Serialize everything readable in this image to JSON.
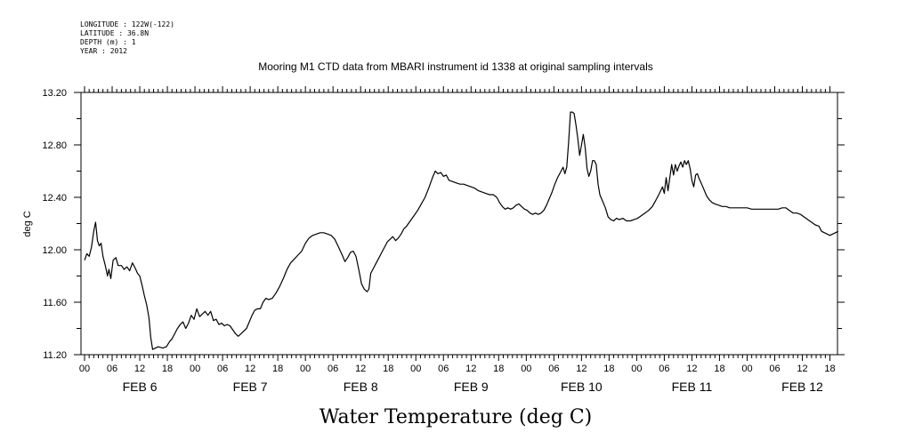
{
  "header": {
    "longitude": "LONGITUDE : 122W(-122)",
    "latitude": "LATITUDE : 36.8N",
    "depth": "DEPTH (m) : 1",
    "year": "YEAR : 2012"
  },
  "chart_data": {
    "type": "line",
    "title": "Mooring M1 CTD data from MBARI instrument id 1338 at original sampling intervals",
    "ylabel": "deg C",
    "xlabel": "Water Temperature (deg C)",
    "ylim": [
      11.2,
      13.2
    ],
    "yticks": [
      "11.20",
      "11.60",
      "12.00",
      "12.40",
      "12.80",
      "13.20"
    ],
    "xlim_hours": [
      0,
      162
    ],
    "x_hour_ticks": [
      "00",
      "06",
      "12",
      "18",
      "00",
      "06",
      "12",
      "18",
      "00",
      "06",
      "12",
      "18",
      "00",
      "06",
      "12",
      "18",
      "00",
      "06",
      "12",
      "18",
      "00",
      "06",
      "12",
      "18",
      "00",
      "06",
      "12",
      "18"
    ],
    "day_labels": [
      "FEB  6",
      "FEB  7",
      "FEB  8",
      "FEB  9",
      "FEB 10",
      "FEB 11",
      "FEB 12"
    ],
    "grid": false,
    "series": [
      {
        "points": [
          [
            0,
            11.92
          ],
          [
            0.5,
            11.97
          ],
          [
            1,
            11.95
          ],
          [
            1.5,
            12.02
          ],
          [
            2,
            12.14
          ],
          [
            2.4,
            12.21
          ],
          [
            2.8,
            12.07
          ],
          [
            3.2,
            12.03
          ],
          [
            3.6,
            12.05
          ],
          [
            4,
            11.95
          ],
          [
            4.5,
            11.88
          ],
          [
            5,
            11.8
          ],
          [
            5.3,
            11.85
          ],
          [
            5.7,
            11.78
          ],
          [
            6.2,
            11.92
          ],
          [
            6.8,
            11.94
          ],
          [
            7.3,
            11.88
          ],
          [
            8,
            11.88
          ],
          [
            8.6,
            11.85
          ],
          [
            9.2,
            11.87
          ],
          [
            9.8,
            11.84
          ],
          [
            10.4,
            11.9
          ],
          [
            11,
            11.86
          ],
          [
            11.5,
            11.82
          ],
          [
            12,
            11.8
          ],
          [
            12.5,
            11.73
          ],
          [
            13,
            11.65
          ],
          [
            13.5,
            11.58
          ],
          [
            14,
            11.48
          ],
          [
            14.4,
            11.33
          ],
          [
            14.8,
            11.24
          ],
          [
            15.4,
            11.25
          ],
          [
            16,
            11.26
          ],
          [
            17,
            11.25
          ],
          [
            17.8,
            11.26
          ],
          [
            18.5,
            11.3
          ],
          [
            19,
            11.32
          ],
          [
            19.6,
            11.36
          ],
          [
            20.2,
            11.4
          ],
          [
            20.8,
            11.43
          ],
          [
            21.4,
            11.45
          ],
          [
            22,
            11.4
          ],
          [
            22.6,
            11.44
          ],
          [
            23.2,
            11.5
          ],
          [
            23.8,
            11.47
          ],
          [
            24.4,
            11.55
          ],
          [
            25,
            11.49
          ],
          [
            25.6,
            11.51
          ],
          [
            26.2,
            11.53
          ],
          [
            26.8,
            11.5
          ],
          [
            27.4,
            11.53
          ],
          [
            28,
            11.46
          ],
          [
            28.6,
            11.47
          ],
          [
            29.2,
            11.43
          ],
          [
            29.8,
            11.44
          ],
          [
            30.4,
            11.42
          ],
          [
            31,
            11.43
          ],
          [
            31.6,
            11.42
          ],
          [
            32.2,
            11.39
          ],
          [
            32.8,
            11.36
          ],
          [
            33.4,
            11.34
          ],
          [
            34,
            11.36
          ],
          [
            34.6,
            11.38
          ],
          [
            35.2,
            11.4
          ],
          [
            35.8,
            11.45
          ],
          [
            36.4,
            11.5
          ],
          [
            37,
            11.54
          ],
          [
            37.6,
            11.55
          ],
          [
            38.2,
            11.55
          ],
          [
            38.8,
            11.6
          ],
          [
            39.4,
            11.63
          ],
          [
            40,
            11.62
          ],
          [
            40.8,
            11.63
          ],
          [
            41.6,
            11.67
          ],
          [
            42.4,
            11.72
          ],
          [
            43.2,
            11.78
          ],
          [
            44,
            11.85
          ],
          [
            44.8,
            11.9
          ],
          [
            45.6,
            11.93
          ],
          [
            46.4,
            11.96
          ],
          [
            47.2,
            11.99
          ],
          [
            48,
            12.05
          ],
          [
            48.8,
            12.09
          ],
          [
            49.6,
            12.11
          ],
          [
            50.4,
            12.12
          ],
          [
            51.2,
            12.13
          ],
          [
            52,
            12.13
          ],
          [
            52.8,
            12.12
          ],
          [
            53.6,
            12.11
          ],
          [
            54.4,
            12.08
          ],
          [
            55.2,
            12.02
          ],
          [
            56,
            11.96
          ],
          [
            56.6,
            11.91
          ],
          [
            57.2,
            11.94
          ],
          [
            57.8,
            11.98
          ],
          [
            58.4,
            11.99
          ],
          [
            59,
            11.95
          ],
          [
            59.6,
            11.85
          ],
          [
            60.2,
            11.74
          ],
          [
            60.8,
            11.7
          ],
          [
            61.4,
            11.68
          ],
          [
            61.8,
            11.7
          ],
          [
            62.2,
            11.82
          ],
          [
            62.8,
            11.86
          ],
          [
            63.4,
            11.9
          ],
          [
            64,
            11.94
          ],
          [
            64.6,
            11.98
          ],
          [
            65.2,
            12.02
          ],
          [
            65.8,
            12.06
          ],
          [
            66.4,
            12.08
          ],
          [
            67,
            12.1
          ],
          [
            67.6,
            12.07
          ],
          [
            68.2,
            12.09
          ],
          [
            68.8,
            12.12
          ],
          [
            69.4,
            12.16
          ],
          [
            70,
            12.18
          ],
          [
            70.8,
            12.22
          ],
          [
            71.6,
            12.26
          ],
          [
            72.4,
            12.3
          ],
          [
            73.2,
            12.35
          ],
          [
            74,
            12.4
          ],
          [
            74.8,
            12.47
          ],
          [
            75.6,
            12.55
          ],
          [
            76.2,
            12.6
          ],
          [
            76.8,
            12.58
          ],
          [
            77.4,
            12.59
          ],
          [
            78,
            12.56
          ],
          [
            78.6,
            12.57
          ],
          [
            79.2,
            12.53
          ],
          [
            80,
            12.52
          ],
          [
            80.8,
            12.51
          ],
          [
            81.6,
            12.5
          ],
          [
            82.4,
            12.5
          ],
          [
            83.2,
            12.49
          ],
          [
            84,
            12.48
          ],
          [
            84.8,
            12.47
          ],
          [
            85.6,
            12.45
          ],
          [
            86.4,
            12.44
          ],
          [
            87.2,
            12.43
          ],
          [
            88,
            12.42
          ],
          [
            88.8,
            12.42
          ],
          [
            89.6,
            12.4
          ],
          [
            90.2,
            12.36
          ],
          [
            90.8,
            12.33
          ],
          [
            91.4,
            12.31
          ],
          [
            92,
            12.32
          ],
          [
            92.6,
            12.31
          ],
          [
            93.2,
            12.32
          ],
          [
            93.8,
            12.34
          ],
          [
            94.4,
            12.35
          ],
          [
            95,
            12.33
          ],
          [
            95.6,
            12.31
          ],
          [
            96.2,
            12.3
          ],
          [
            96.8,
            12.28
          ],
          [
            97.4,
            12.27
          ],
          [
            98,
            12.28
          ],
          [
            98.6,
            12.27
          ],
          [
            99.2,
            12.28
          ],
          [
            99.8,
            12.3
          ],
          [
            100.4,
            12.34
          ],
          [
            101,
            12.39
          ],
          [
            101.6,
            12.44
          ],
          [
            102.2,
            12.5
          ],
          [
            102.8,
            12.55
          ],
          [
            103.4,
            12.59
          ],
          [
            104,
            12.63
          ],
          [
            104.4,
            12.58
          ],
          [
            104.8,
            12.63
          ],
          [
            105.2,
            12.82
          ],
          [
            105.6,
            13.05
          ],
          [
            106,
            13.05
          ],
          [
            106.4,
            13.04
          ],
          [
            106.8,
            12.95
          ],
          [
            107.2,
            12.85
          ],
          [
            107.6,
            12.72
          ],
          [
            108,
            12.8
          ],
          [
            108.4,
            12.88
          ],
          [
            108.8,
            12.78
          ],
          [
            109.2,
            12.62
          ],
          [
            109.6,
            12.56
          ],
          [
            110,
            12.6
          ],
          [
            110.4,
            12.68
          ],
          [
            110.8,
            12.68
          ],
          [
            111.2,
            12.65
          ],
          [
            111.6,
            12.5
          ],
          [
            112,
            12.42
          ],
          [
            112.6,
            12.37
          ],
          [
            113.2,
            12.32
          ],
          [
            113.8,
            12.25
          ],
          [
            114.4,
            12.23
          ],
          [
            115,
            12.22
          ],
          [
            115.6,
            12.24
          ],
          [
            116.2,
            12.23
          ],
          [
            117,
            12.24
          ],
          [
            117.8,
            12.22
          ],
          [
            118.6,
            12.22
          ],
          [
            119.4,
            12.23
          ],
          [
            120.2,
            12.24
          ],
          [
            121,
            12.26
          ],
          [
            121.8,
            12.28
          ],
          [
            122.6,
            12.3
          ],
          [
            123.4,
            12.33
          ],
          [
            124.2,
            12.38
          ],
          [
            124.8,
            12.42
          ],
          [
            125.2,
            12.45
          ],
          [
            125.6,
            12.48
          ],
          [
            126,
            12.43
          ],
          [
            126.4,
            12.55
          ],
          [
            126.8,
            12.45
          ],
          [
            127.2,
            12.55
          ],
          [
            127.6,
            12.65
          ],
          [
            128,
            12.57
          ],
          [
            128.4,
            12.65
          ],
          [
            128.8,
            12.6
          ],
          [
            129.2,
            12.64
          ],
          [
            129.6,
            12.67
          ],
          [
            130,
            12.63
          ],
          [
            130.4,
            12.68
          ],
          [
            130.8,
            12.65
          ],
          [
            131.2,
            12.68
          ],
          [
            131.6,
            12.62
          ],
          [
            132,
            12.53
          ],
          [
            132.4,
            12.48
          ],
          [
            132.8,
            12.57
          ],
          [
            133.2,
            12.58
          ],
          [
            133.6,
            12.54
          ],
          [
            134,
            12.51
          ],
          [
            134.6,
            12.46
          ],
          [
            135.2,
            12.41
          ],
          [
            135.8,
            12.38
          ],
          [
            136.4,
            12.36
          ],
          [
            137,
            12.35
          ],
          [
            137.8,
            12.34
          ],
          [
            138.6,
            12.33
          ],
          [
            139.4,
            12.33
          ],
          [
            140.2,
            12.32
          ],
          [
            141,
            12.32
          ],
          [
            142,
            12.32
          ],
          [
            143,
            12.32
          ],
          [
            144,
            12.32
          ],
          [
            145,
            12.31
          ],
          [
            146,
            12.31
          ],
          [
            147,
            12.31
          ],
          [
            148,
            12.31
          ],
          [
            149,
            12.31
          ],
          [
            150,
            12.31
          ],
          [
            150.8,
            12.31
          ],
          [
            151.6,
            12.32
          ],
          [
            152.4,
            12.32
          ],
          [
            153.2,
            12.3
          ],
          [
            154,
            12.28
          ],
          [
            154.8,
            12.28
          ],
          [
            155.6,
            12.27
          ],
          [
            156.4,
            12.25
          ],
          [
            157.2,
            12.23
          ],
          [
            158,
            12.21
          ],
          [
            158.8,
            12.19
          ],
          [
            159.6,
            12.18
          ],
          [
            160.2,
            12.14
          ],
          [
            160.8,
            12.13
          ],
          [
            161.4,
            12.12
          ],
          [
            162,
            12.11
          ],
          [
            162.6,
            12.12
          ],
          [
            163.2,
            12.13
          ],
          [
            163.8,
            12.14
          ]
        ]
      }
    ]
  }
}
